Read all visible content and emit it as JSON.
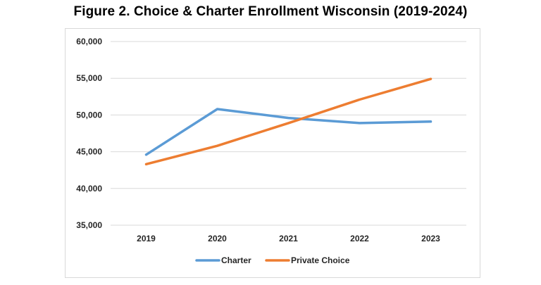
{
  "chart_data": {
    "type": "line",
    "title": "Figure 2. Choice & Charter Enrollment Wisconsin (2019-2024)",
    "xlabel": "",
    "ylabel": "",
    "categories": [
      "2019",
      "2020",
      "2021",
      "2022",
      "2023"
    ],
    "ylim": [
      35000,
      60000
    ],
    "yticks": [
      35000,
      40000,
      45000,
      50000,
      55000,
      60000
    ],
    "ytick_labels": [
      "35,000",
      "40,000",
      "45,000",
      "50,000",
      "55,000",
      "60,000"
    ],
    "grid": true,
    "legend_position": "bottom",
    "series": [
      {
        "name": "Charter",
        "color": "#5b9bd5",
        "values": [
          44600,
          50800,
          49600,
          48900,
          49100
        ]
      },
      {
        "name": "Private Choice",
        "color": "#ed7d31",
        "values": [
          43300,
          45800,
          48900,
          52100,
          54900
        ]
      }
    ]
  }
}
